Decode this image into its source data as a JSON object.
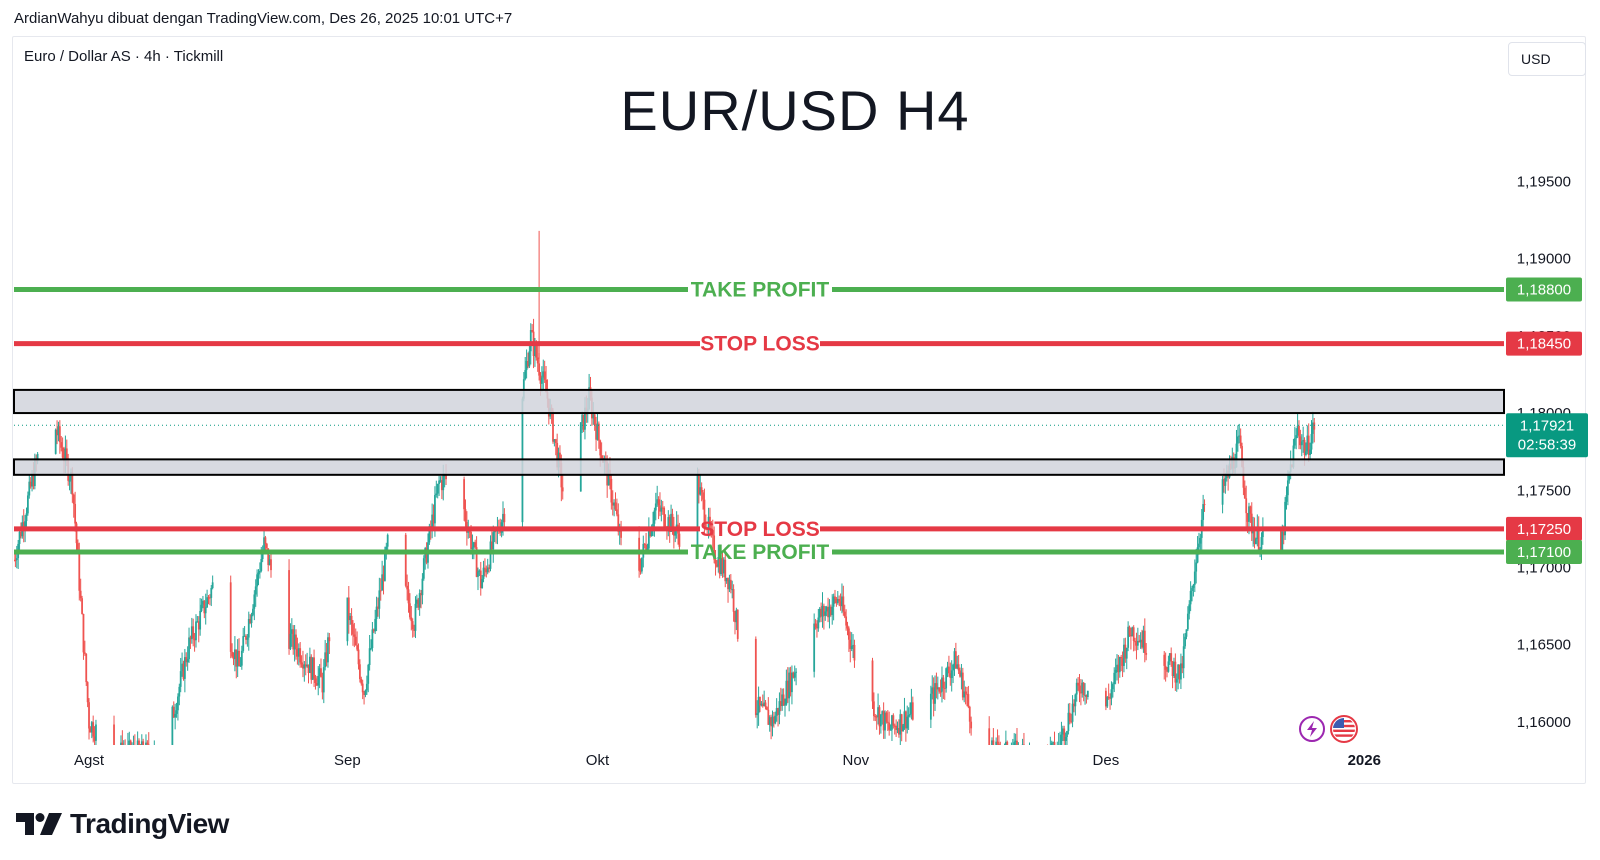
{
  "header": {
    "credit": "ArdianWahyu dibuat dengan TradingView.com, Des 26, 2025 10:01 UTC+7",
    "symbol": "Euro / Dollar AS · 4h · Tickmill",
    "currency_button": "USD"
  },
  "footer": {
    "brand": "TradingView"
  },
  "icons": [
    "lightning-icon",
    "us-flag-icon",
    "tradingview-logo-icon"
  ],
  "colors": {
    "up": "#26a69a",
    "down": "#ef5350",
    "take_profit": "#4caf50",
    "stop_loss": "#e53945",
    "zone_fill": "#d1d4dc",
    "last_price": "#089981"
  },
  "chart_data": {
    "type": "candlestick",
    "title": "EUR/USD H4",
    "instrument": "Euro / Dollar AS",
    "timeframe": "4h",
    "broker": "Tickmill",
    "y_ticks": [
      "1,16000",
      "1,16500",
      "1,17000",
      "1,17500",
      "1,18000",
      "1,18500",
      "1,19000",
      "1,19500"
    ],
    "y_tick_values": [
      1.16,
      1.165,
      1.17,
      1.175,
      1.18,
      1.185,
      1.19,
      1.195
    ],
    "ylim": [
      1.1585,
      1.1995
    ],
    "x_ticks": [
      {
        "label": "Agst",
        "date": "2025-08-01"
      },
      {
        "label": "Sep",
        "date": "2025-09-01"
      },
      {
        "label": "Okt",
        "date": "2025-10-01"
      },
      {
        "label": "Nov",
        "date": "2025-11-01"
      },
      {
        "label": "Des",
        "date": "2025-12-01"
      },
      {
        "label": "2026",
        "date": "2026-01-01"
      }
    ],
    "xlim": [
      "2025-07-23",
      "2026-01-30"
    ],
    "levels": [
      {
        "label": "TAKE PROFIT",
        "price": 1.188,
        "price_label": "1,18800",
        "kind": "take_profit"
      },
      {
        "label": "STOP LOSS",
        "price": 1.1845,
        "price_label": "1,18450",
        "kind": "stop_loss"
      },
      {
        "label": "STOP LOSS",
        "price": 1.1725,
        "price_label": "1,17250",
        "kind": "stop_loss"
      },
      {
        "label": "TAKE PROFIT",
        "price": 1.171,
        "price_label": "1,17100",
        "kind": "take_profit"
      }
    ],
    "zones": [
      {
        "top": 1.1815,
        "bottom": 1.18
      },
      {
        "top": 1.177,
        "bottom": 1.176
      }
    ],
    "last_price": {
      "price": 1.17921,
      "label": "1,17921",
      "countdown": "02:58:39"
    },
    "grid": false,
    "anchors": [
      {
        "date": "2025-07-23",
        "price": 1.1705
      },
      {
        "date": "2025-07-26",
        "price": 1.1775
      },
      {
        "date": "2025-07-28",
        "price": 1.179
      },
      {
        "date": "2025-07-30",
        "price": 1.1755
      },
      {
        "date": "2025-08-01",
        "price": 1.16
      },
      {
        "date": "2025-08-04",
        "price": 1.158
      },
      {
        "date": "2025-08-10",
        "price": 1.158
      },
      {
        "date": "2025-08-13",
        "price": 1.165
      },
      {
        "date": "2025-08-16",
        "price": 1.169
      },
      {
        "date": "2025-08-19",
        "price": 1.1635
      },
      {
        "date": "2025-08-22",
        "price": 1.1715
      },
      {
        "date": "2025-08-25",
        "price": 1.1655
      },
      {
        "date": "2025-08-29",
        "price": 1.1625
      },
      {
        "date": "2025-08-31",
        "price": 1.17
      },
      {
        "date": "2025-09-03",
        "price": 1.162
      },
      {
        "date": "2025-09-06",
        "price": 1.172
      },
      {
        "date": "2025-09-09",
        "price": 1.1665
      },
      {
        "date": "2025-09-12",
        "price": 1.1755
      },
      {
        "date": "2025-09-14",
        "price": 1.176
      },
      {
        "date": "2025-09-17",
        "price": 1.169
      },
      {
        "date": "2025-09-20",
        "price": 1.174
      },
      {
        "date": "2025-09-23",
        "price": 1.185
      },
      {
        "date": "2025-09-25",
        "price": 1.181
      },
      {
        "date": "2025-09-27",
        "price": 1.1745
      },
      {
        "date": "2025-09-30",
        "price": 1.181
      },
      {
        "date": "2025-10-03",
        "price": 1.174
      },
      {
        "date": "2025-10-05",
        "price": 1.168
      },
      {
        "date": "2025-10-08",
        "price": 1.174
      },
      {
        "date": "2025-10-11",
        "price": 1.172
      },
      {
        "date": "2025-10-13",
        "price": 1.1755
      },
      {
        "date": "2025-10-15",
        "price": 1.171
      },
      {
        "date": "2025-10-17",
        "price": 1.169
      },
      {
        "date": "2025-10-19",
        "price": 1.1615
      },
      {
        "date": "2025-10-22",
        "price": 1.16
      },
      {
        "date": "2025-10-24",
        "price": 1.1625
      },
      {
        "date": "2025-10-27",
        "price": 1.1665
      },
      {
        "date": "2025-10-30",
        "price": 1.168
      },
      {
        "date": "2025-11-02",
        "price": 1.162
      },
      {
        "date": "2025-11-05",
        "price": 1.1595
      },
      {
        "date": "2025-11-10",
        "price": 1.1615
      },
      {
        "date": "2025-11-13",
        "price": 1.164
      },
      {
        "date": "2025-11-16",
        "price": 1.158
      },
      {
        "date": "2025-11-25",
        "price": 1.158
      },
      {
        "date": "2025-11-28",
        "price": 1.1625
      },
      {
        "date": "2025-12-01",
        "price": 1.161
      },
      {
        "date": "2025-12-04",
        "price": 1.166
      },
      {
        "date": "2025-12-07",
        "price": 1.1645
      },
      {
        "date": "2025-12-10",
        "price": 1.163
      },
      {
        "date": "2025-12-12",
        "price": 1.1715
      },
      {
        "date": "2025-12-13",
        "price": 1.1745
      },
      {
        "date": "2025-12-15",
        "price": 1.175
      },
      {
        "date": "2025-12-17",
        "price": 1.178
      },
      {
        "date": "2025-12-18",
        "price": 1.1735
      },
      {
        "date": "2025-12-19",
        "price": 1.172
      },
      {
        "date": "2025-12-22",
        "price": 1.171
      },
      {
        "date": "2025-12-23",
        "price": 1.176
      },
      {
        "date": "2025-12-24",
        "price": 1.179
      },
      {
        "date": "2025-12-25",
        "price": 1.1775
      },
      {
        "date": "2025-12-26",
        "price": 1.1792
      }
    ]
  }
}
